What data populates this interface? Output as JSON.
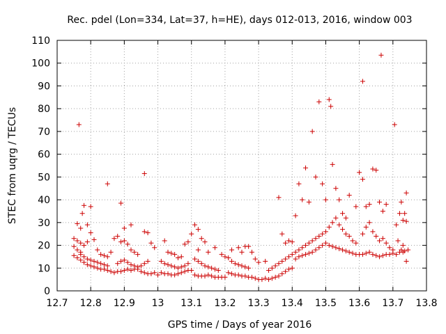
{
  "chart_data": {
    "type": "scatter",
    "title": "Rec. pdel (Lon=334, Lat=37, h=HE), days 012-013, 2016, window 003",
    "xlabel": "GPS time / Days of year 2016",
    "ylabel": "STEC from uqrg / TECUs",
    "xlim": [
      12.7,
      13.8
    ],
    "ylim": [
      0,
      110
    ],
    "xticks": [
      "12.7",
      "12.8",
      "12.9",
      "13",
      "13.1",
      "13.2",
      "13.3",
      "13.4",
      "13.5",
      "13.6",
      "13.7",
      "13.8"
    ],
    "yticks": [
      "0",
      "10",
      "20",
      "30",
      "40",
      "50",
      "60",
      "70",
      "80",
      "90",
      "100",
      "110"
    ],
    "grid": true,
    "marker": "+",
    "colors": {
      "series": "#cc0000",
      "grid": "#a0a0a0",
      "axes": "#000000"
    },
    "series": [
      {
        "name": "",
        "points": [
          [
            12.76,
            29.5
          ],
          [
            12.77,
            27.5
          ],
          [
            12.765,
            73
          ],
          [
            12.78,
            37.5
          ],
          [
            12.775,
            34
          ],
          [
            12.8,
            37
          ],
          [
            12.79,
            29
          ],
          [
            12.85,
            47
          ],
          [
            12.89,
            38.5
          ],
          [
            12.96,
            51.5
          ],
          [
            12.92,
            29
          ],
          [
            12.9,
            27.5
          ],
          [
            12.75,
            23
          ],
          [
            12.76,
            22
          ],
          [
            12.77,
            21
          ],
          [
            12.75,
            19.5
          ],
          [
            12.76,
            18
          ],
          [
            12.77,
            17
          ],
          [
            12.78,
            20
          ],
          [
            12.79,
            21.5
          ],
          [
            12.8,
            25.5
          ],
          [
            12.81,
            22.5
          ],
          [
            12.75,
            15.5
          ],
          [
            12.76,
            14.5
          ],
          [
            12.77,
            13.5
          ],
          [
            12.78,
            12.5
          ],
          [
            12.79,
            11.5
          ],
          [
            12.8,
            11
          ],
          [
            12.81,
            10.5
          ],
          [
            12.82,
            10
          ],
          [
            12.83,
            9.5
          ],
          [
            12.84,
            9.5
          ],
          [
            12.77,
            16
          ],
          [
            12.78,
            15
          ],
          [
            12.79,
            14
          ],
          [
            12.8,
            13.5
          ],
          [
            12.81,
            13
          ],
          [
            12.82,
            12.5
          ],
          [
            12.83,
            12
          ],
          [
            12.84,
            11.5
          ],
          [
            12.85,
            11
          ],
          [
            12.82,
            18
          ],
          [
            12.83,
            16
          ],
          [
            12.84,
            15.5
          ],
          [
            12.85,
            15
          ],
          [
            12.86,
            17
          ],
          [
            12.87,
            23
          ],
          [
            12.88,
            24
          ],
          [
            12.89,
            21.5
          ],
          [
            12.9,
            22
          ],
          [
            12.85,
            9
          ],
          [
            12.86,
            8.5
          ],
          [
            12.87,
            8
          ],
          [
            12.88,
            8.5
          ],
          [
            12.89,
            8.5
          ],
          [
            12.9,
            9
          ],
          [
            12.91,
            9.5
          ],
          [
            12.92,
            9
          ],
          [
            12.93,
            9.5
          ],
          [
            12.94,
            9.5
          ],
          [
            12.88,
            12
          ],
          [
            12.89,
            13
          ],
          [
            12.9,
            13.5
          ],
          [
            12.91,
            12.5
          ],
          [
            12.92,
            11.5
          ],
          [
            12.93,
            11
          ],
          [
            12.94,
            10.5
          ],
          [
            12.95,
            11
          ],
          [
            12.96,
            12
          ],
          [
            12.97,
            13
          ],
          [
            12.91,
            20.5
          ],
          [
            12.92,
            18
          ],
          [
            12.93,
            17
          ],
          [
            12.94,
            16
          ],
          [
            12.96,
            26
          ],
          [
            12.97,
            25.5
          ],
          [
            12.98,
            21
          ],
          [
            12.99,
            19
          ],
          [
            12.95,
            8.5
          ],
          [
            12.96,
            8
          ],
          [
            12.97,
            7.5
          ],
          [
            12.98,
            7.5
          ],
          [
            12.99,
            8
          ],
          [
            13.0,
            7
          ],
          [
            13.02,
            22
          ],
          [
            13.03,
            17
          ],
          [
            13.04,
            16.5
          ],
          [
            13.05,
            16
          ],
          [
            13.06,
            14.5
          ],
          [
            13.07,
            15
          ],
          [
            13.08,
            20.5
          ],
          [
            13.09,
            21.5
          ],
          [
            13.01,
            13
          ],
          [
            13.02,
            12
          ],
          [
            13.03,
            11.5
          ],
          [
            13.04,
            11
          ],
          [
            13.05,
            10.5
          ],
          [
            13.06,
            10
          ],
          [
            13.07,
            10.5
          ],
          [
            13.08,
            11
          ],
          [
            13.09,
            12
          ],
          [
            13.01,
            8
          ],
          [
            13.02,
            7.5
          ],
          [
            13.03,
            7.5
          ],
          [
            13.04,
            7
          ],
          [
            13.05,
            7
          ],
          [
            13.06,
            7.5
          ],
          [
            13.07,
            8
          ],
          [
            13.08,
            8.5
          ],
          [
            13.09,
            9
          ],
          [
            13.1,
            9
          ],
          [
            13.11,
            29
          ],
          [
            13.12,
            27
          ],
          [
            13.1,
            25
          ],
          [
            13.13,
            23
          ],
          [
            13.14,
            21.5
          ],
          [
            13.12,
            18
          ],
          [
            13.15,
            17
          ],
          [
            13.17,
            19
          ],
          [
            13.11,
            14
          ],
          [
            13.12,
            13
          ],
          [
            13.13,
            12
          ],
          [
            13.14,
            11
          ],
          [
            13.15,
            10.5
          ],
          [
            13.16,
            10
          ],
          [
            13.17,
            9.5
          ],
          [
            13.18,
            9
          ],
          [
            13.11,
            7
          ],
          [
            13.12,
            6.5
          ],
          [
            13.13,
            6.5
          ],
          [
            13.14,
            6.5
          ],
          [
            13.15,
            7
          ],
          [
            13.16,
            6.5
          ],
          [
            13.17,
            6
          ],
          [
            13.18,
            6
          ],
          [
            13.19,
            6
          ],
          [
            13.2,
            6
          ],
          [
            13.19,
            16
          ],
          [
            13.2,
            15
          ],
          [
            13.21,
            14.5
          ],
          [
            13.22,
            13
          ],
          [
            13.23,
            12
          ],
          [
            13.24,
            11.5
          ],
          [
            13.25,
            11
          ],
          [
            13.26,
            10.5
          ],
          [
            13.27,
            10
          ],
          [
            13.21,
            8
          ],
          [
            13.22,
            7.5
          ],
          [
            13.23,
            7
          ],
          [
            13.24,
            7
          ],
          [
            13.25,
            6.5
          ],
          [
            13.26,
            6.5
          ],
          [
            13.27,
            6
          ],
          [
            13.28,
            6
          ],
          [
            13.29,
            5.5
          ],
          [
            13.3,
            5
          ],
          [
            13.22,
            18
          ],
          [
            13.24,
            19
          ],
          [
            13.25,
            17
          ],
          [
            13.26,
            19.5
          ],
          [
            13.27,
            19.5
          ],
          [
            13.28,
            17
          ],
          [
            13.29,
            14
          ],
          [
            13.3,
            12.5
          ],
          [
            13.32,
            13
          ],
          [
            13.31,
            5
          ],
          [
            13.32,
            5.5
          ],
          [
            13.33,
            5
          ],
          [
            13.34,
            5.5
          ],
          [
            13.35,
            6
          ],
          [
            13.36,
            6.5
          ],
          [
            13.37,
            7.5
          ],
          [
            13.38,
            8.5
          ],
          [
            13.39,
            9.5
          ],
          [
            13.4,
            10
          ],
          [
            13.33,
            9
          ],
          [
            13.34,
            10
          ],
          [
            13.35,
            11
          ],
          [
            13.36,
            12
          ],
          [
            13.37,
            13
          ],
          [
            13.38,
            14
          ],
          [
            13.39,
            15
          ],
          [
            13.4,
            16
          ],
          [
            13.36,
            41
          ],
          [
            13.37,
            25
          ],
          [
            13.38,
            21
          ],
          [
            13.39,
            22
          ],
          [
            13.4,
            21.5
          ],
          [
            13.41,
            33
          ],
          [
            13.42,
            47
          ],
          [
            13.43,
            40
          ],
          [
            13.44,
            54
          ],
          [
            13.45,
            39
          ],
          [
            13.46,
            70
          ],
          [
            13.47,
            50
          ],
          [
            13.48,
            83
          ],
          [
            13.49,
            47
          ],
          [
            13.5,
            40
          ],
          [
            13.51,
            84
          ],
          [
            13.515,
            81
          ],
          [
            13.52,
            55.5
          ],
          [
            13.53,
            45
          ],
          [
            13.54,
            40
          ],
          [
            13.55,
            34
          ],
          [
            13.56,
            32
          ],
          [
            13.41,
            17
          ],
          [
            13.42,
            18
          ],
          [
            13.43,
            19
          ],
          [
            13.44,
            20
          ],
          [
            13.45,
            21
          ],
          [
            13.46,
            22
          ],
          [
            13.47,
            23
          ],
          [
            13.48,
            24
          ],
          [
            13.49,
            25
          ],
          [
            13.5,
            26
          ],
          [
            13.41,
            14
          ],
          [
            13.42,
            15
          ],
          [
            13.43,
            15.5
          ],
          [
            13.44,
            16
          ],
          [
            13.45,
            16.5
          ],
          [
            13.46,
            17
          ],
          [
            13.47,
            18
          ],
          [
            13.48,
            19
          ],
          [
            13.49,
            20
          ],
          [
            13.5,
            21
          ],
          [
            13.51,
            20
          ],
          [
            13.52,
            19.5
          ],
          [
            13.53,
            19
          ],
          [
            13.54,
            18.5
          ],
          [
            13.55,
            18
          ],
          [
            13.56,
            17.5
          ],
          [
            13.57,
            17
          ],
          [
            13.58,
            16.5
          ],
          [
            13.59,
            16
          ],
          [
            13.6,
            16
          ],
          [
            13.51,
            28
          ],
          [
            13.52,
            30
          ],
          [
            13.53,
            32
          ],
          [
            13.54,
            29
          ],
          [
            13.55,
            27
          ],
          [
            13.56,
            25
          ],
          [
            13.57,
            24
          ],
          [
            13.58,
            22
          ],
          [
            13.59,
            21
          ],
          [
            13.57,
            42
          ],
          [
            13.59,
            37
          ],
          [
            13.6,
            52
          ],
          [
            13.61,
            49
          ],
          [
            13.62,
            37
          ],
          [
            13.63,
            38
          ],
          [
            13.64,
            53.5
          ],
          [
            13.65,
            53
          ],
          [
            13.66,
            39
          ],
          [
            13.67,
            35
          ],
          [
            13.61,
            92
          ],
          [
            13.665,
            103.5
          ],
          [
            13.705,
            73
          ],
          [
            13.68,
            38
          ],
          [
            13.61,
            25
          ],
          [
            13.62,
            28
          ],
          [
            13.63,
            30
          ],
          [
            13.64,
            26
          ],
          [
            13.65,
            24
          ],
          [
            13.66,
            22
          ],
          [
            13.67,
            23
          ],
          [
            13.68,
            21
          ],
          [
            13.69,
            19
          ],
          [
            13.7,
            18
          ],
          [
            13.61,
            16
          ],
          [
            13.62,
            16.5
          ],
          [
            13.63,
            17
          ],
          [
            13.64,
            16
          ],
          [
            13.65,
            15.5
          ],
          [
            13.66,
            15
          ],
          [
            13.67,
            15.5
          ],
          [
            13.68,
            16
          ],
          [
            13.69,
            16
          ],
          [
            13.7,
            16.5
          ],
          [
            13.71,
            29
          ],
          [
            13.72,
            34
          ],
          [
            13.73,
            31
          ],
          [
            13.74,
            43
          ],
          [
            13.735,
            34
          ],
          [
            13.725,
            39
          ],
          [
            13.715,
            22
          ],
          [
            13.73,
            17
          ],
          [
            13.74,
            13
          ],
          [
            13.735,
            17.5
          ],
          [
            13.71,
            16
          ],
          [
            13.72,
            17
          ],
          [
            13.725,
            18
          ],
          [
            13.73,
            20
          ],
          [
            13.74,
            30.5
          ],
          [
            13.745,
            18
          ]
        ]
      }
    ]
  }
}
